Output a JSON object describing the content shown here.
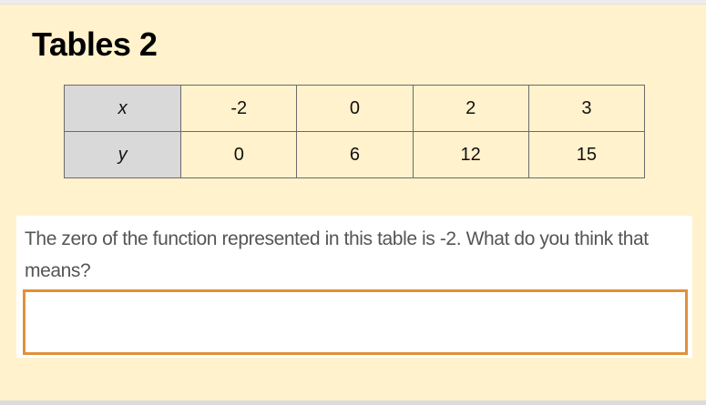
{
  "title": "Tables 2",
  "table": {
    "rows": [
      {
        "header": "x",
        "values": [
          "-2",
          "0",
          "2",
          "3"
        ]
      },
      {
        "header": "y",
        "values": [
          "0",
          "6",
          "12",
          "15"
        ]
      }
    ]
  },
  "question": {
    "text": "The zero of the function represented in this table is -2.  What do you think that means?",
    "answer_value": ""
  },
  "colors": {
    "background": "#fff2cc",
    "header_cell": "#d9d9d9",
    "input_border": "#e0913a"
  }
}
